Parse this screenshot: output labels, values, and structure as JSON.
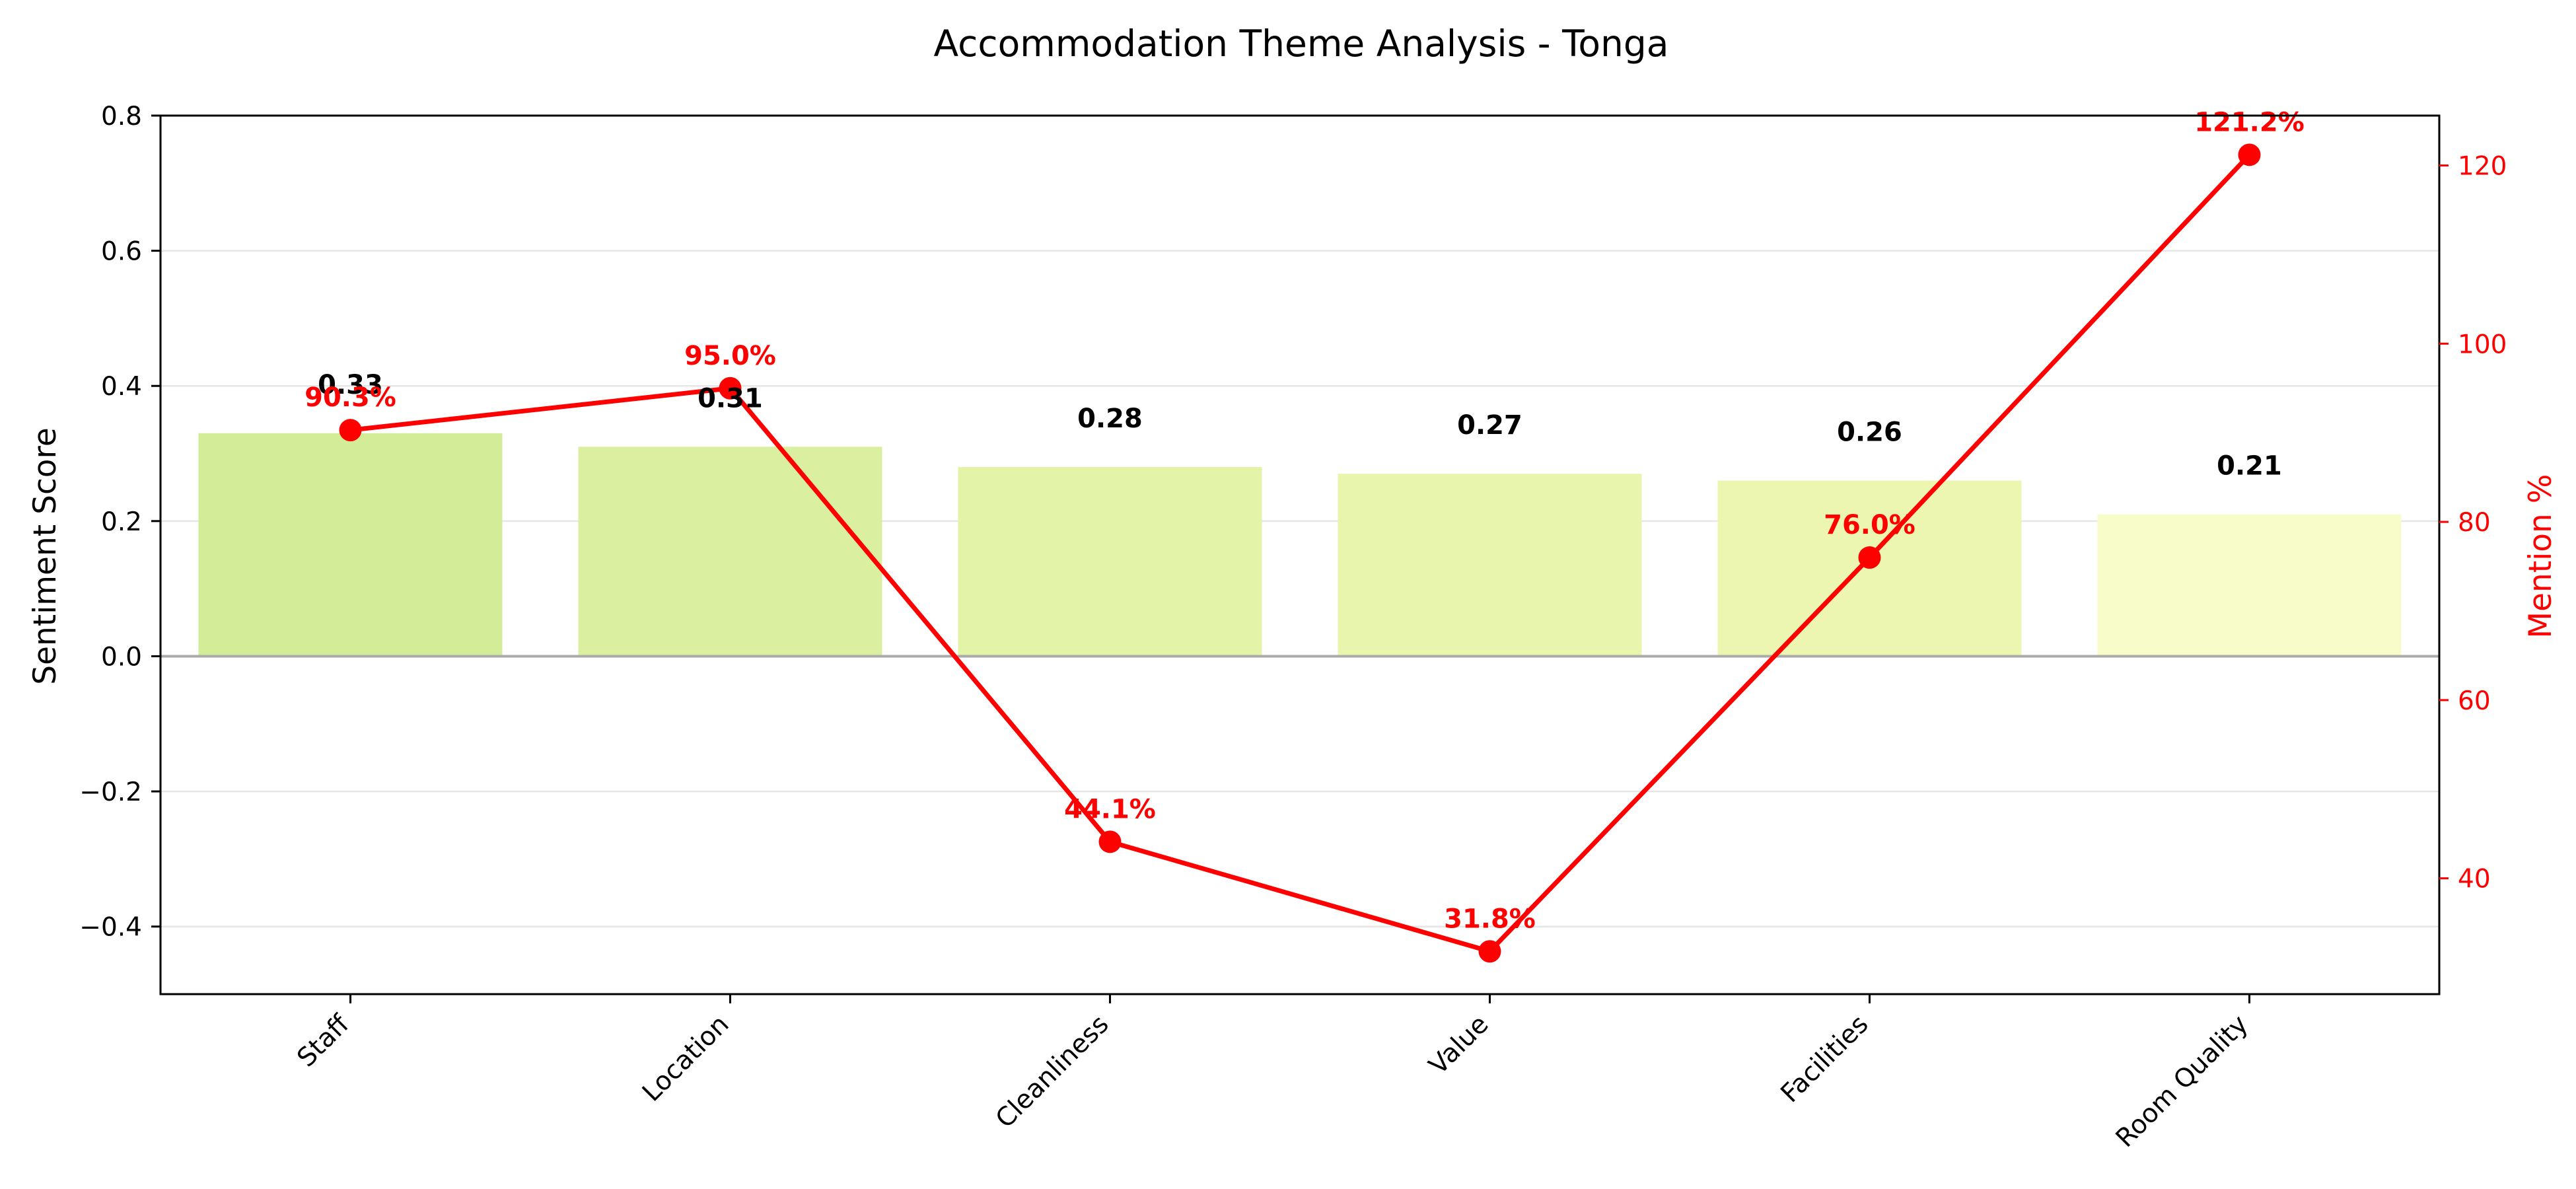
{
  "chart_data": {
    "type": "bar",
    "title": "Accommodation Theme Analysis - Tonga",
    "categories": [
      "Staff",
      "Location",
      "Cleanliness",
      "Value",
      "Facilities",
      "Room Quality"
    ],
    "series": [
      {
        "axis": "left",
        "type": "bar",
        "values": [
          0.33,
          0.31,
          0.28,
          0.27,
          0.26,
          0.21
        ],
        "value_labels": [
          "0.33",
          "0.31",
          "0.28",
          "0.27",
          "0.26",
          "0.21"
        ],
        "colors": [
          "#d3ec98",
          "#dbefa1",
          "#e3f3a8",
          "#e8f5ad",
          "#ecf6b1",
          "#f8fcc8"
        ]
      },
      {
        "axis": "right",
        "type": "line",
        "values": [
          90.3,
          95.0,
          44.1,
          31.8,
          76.0,
          121.2
        ],
        "value_labels": [
          "90.3%",
          "95.0%",
          "44.1%",
          "31.8%",
          "76.0%",
          "121.2%"
        ],
        "color": "#ff0000"
      }
    ],
    "ylabel": "Sentiment Score",
    "ylim": [
      -0.5,
      0.8
    ],
    "yticks": [
      -0.4,
      -0.2,
      0.0,
      0.2,
      0.4,
      0.6,
      0.8
    ],
    "ytick_labels": [
      "−0.4",
      "−0.2",
      "0.0",
      "0.2",
      "0.4",
      "0.6",
      "0.8"
    ],
    "y2label": "Mention %",
    "y2lim": [
      27,
      125.6
    ],
    "y2ticks": [
      40,
      60,
      80,
      100,
      120
    ],
    "y2tick_labels": [
      "40",
      "60",
      "80",
      "100",
      "120"
    ],
    "y2_color": "#ff0000",
    "grid": true,
    "zero_line_color": "#aaaaaa"
  }
}
